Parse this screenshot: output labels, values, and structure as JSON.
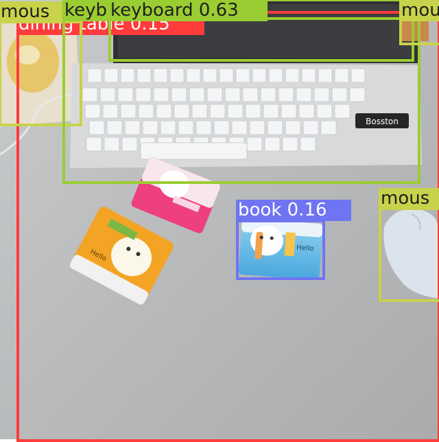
{
  "colors": {
    "dining_table": "#ff3b3b",
    "keyboard": "#9acd32",
    "mouse": "#c8d24a",
    "book": "#6f74f2",
    "label_text_dark": "#1f1f1f",
    "label_text_light": "#ffffff"
  },
  "detections": {
    "dining_table": {
      "label": "dining table 0.15"
    },
    "keyboard_main": {
      "label": "keyboard 0.63"
    },
    "keyboard_alt": {
      "label": "keyb"
    },
    "mouse_left": {
      "label": "mous"
    },
    "mouse_right": {
      "label": "mous"
    },
    "mouse_top": {
      "label": "mou"
    },
    "book": {
      "label": "book 0.16"
    }
  },
  "scene": {
    "keyboard_brand": "Bosston",
    "package_text": "Hello"
  }
}
